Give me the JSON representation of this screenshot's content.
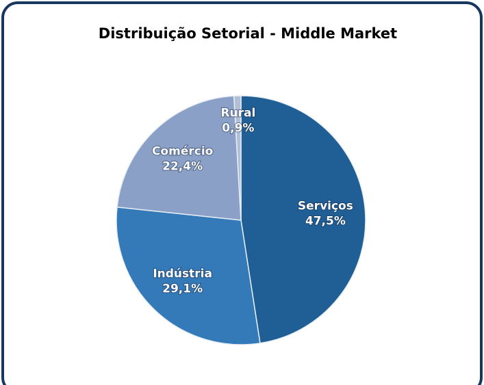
{
  "chart_data": {
    "type": "pie",
    "title": "Distribuição Setorial - Middle Market",
    "categories": [
      "Serviços",
      "Indústria",
      "Comércio",
      "Rural"
    ],
    "values": [
      47.5,
      29.1,
      22.4,
      0.9
    ],
    "value_labels": [
      "47,5%",
      "29,1%",
      "22,4%",
      "0,9%"
    ],
    "colors": [
      "#1f5f96",
      "#3479b8",
      "#8aa0c6",
      "#b3bfd6"
    ]
  }
}
